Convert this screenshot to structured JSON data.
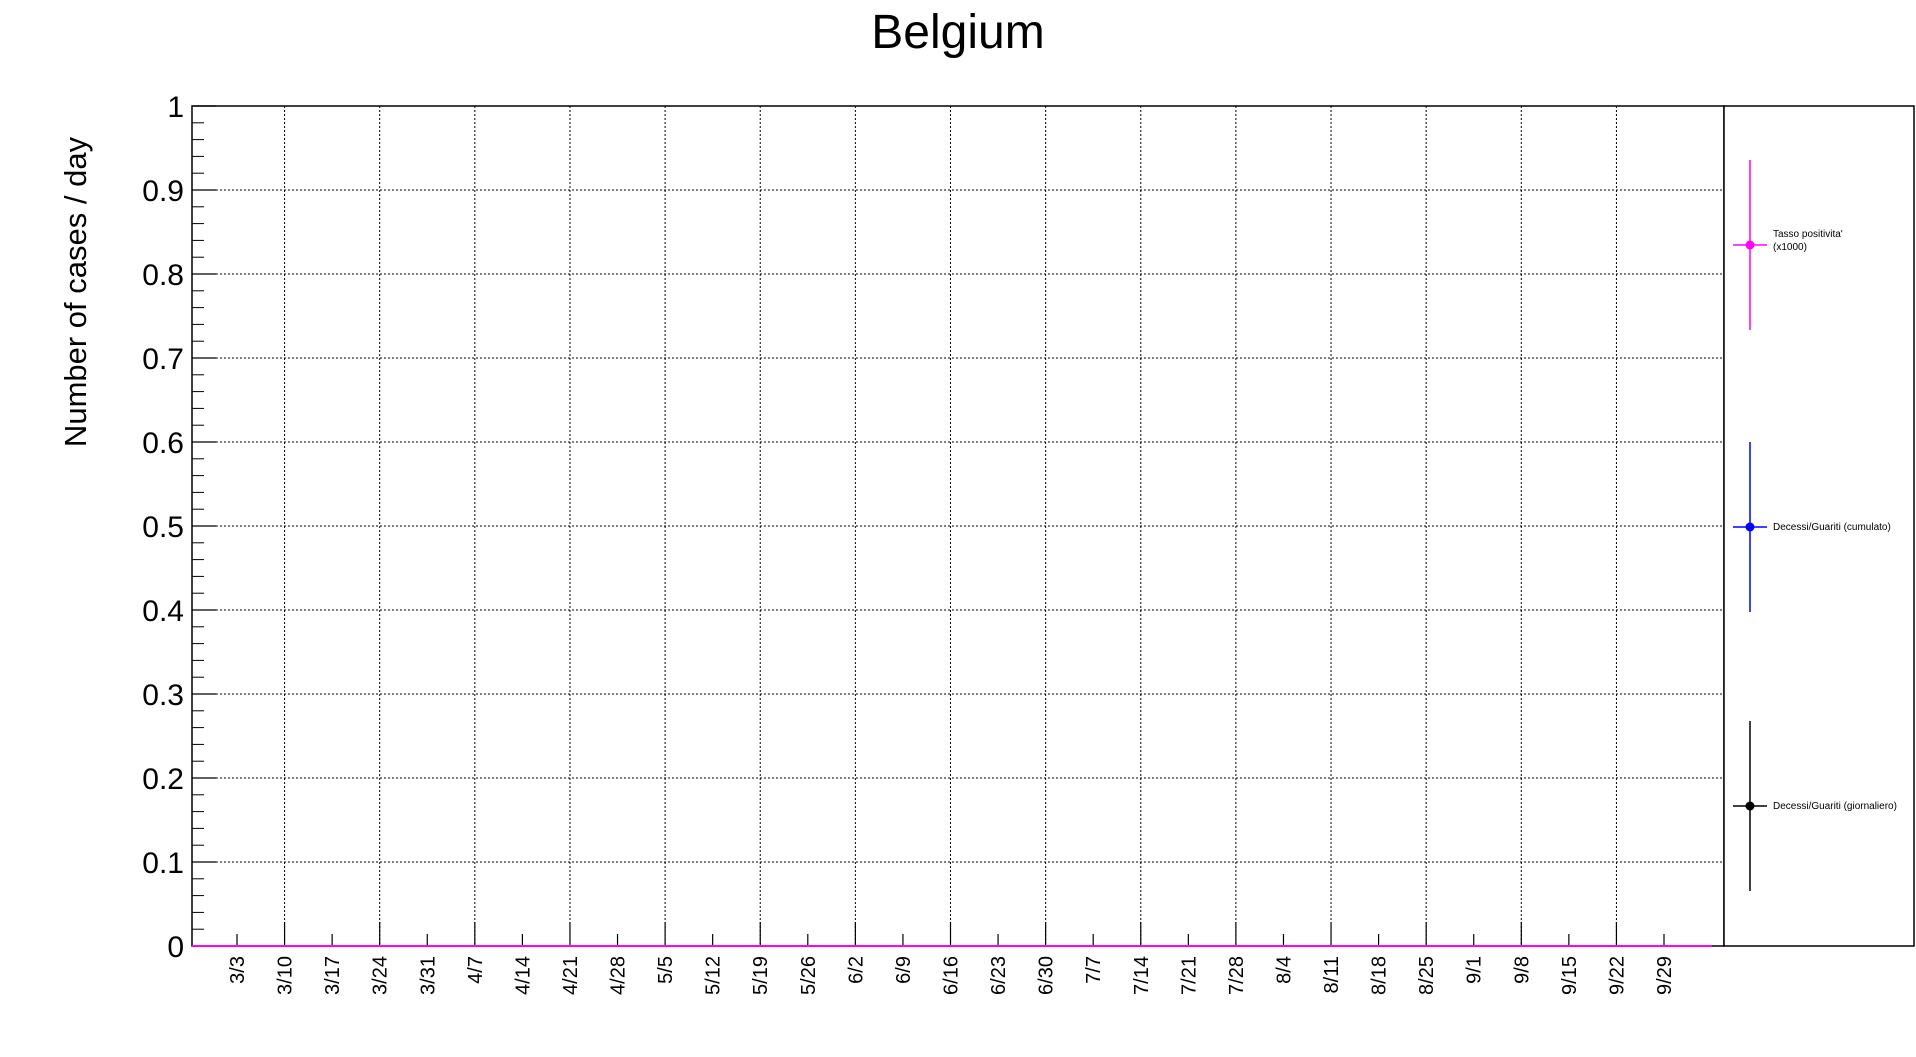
{
  "chart_data": {
    "type": "line",
    "title": "Belgium",
    "ylabel": "Number of cases / day",
    "xlabel": "",
    "ylim": [
      0,
      1
    ],
    "yticks": [
      "0",
      "0.1",
      "0.2",
      "0.3",
      "0.4",
      "0.5",
      "0.6",
      "0.7",
      "0.8",
      "0.9",
      "1"
    ],
    "categories": [
      "3/3",
      "3/10",
      "3/17",
      "3/24",
      "3/31",
      "4/7",
      "4/14",
      "4/21",
      "4/28",
      "5/5",
      "5/12",
      "5/19",
      "5/26",
      "6/2",
      "6/9",
      "6/16",
      "6/23",
      "6/30",
      "7/7",
      "7/14",
      "7/21",
      "7/28",
      "8/4",
      "8/11",
      "8/18",
      "8/25",
      "9/1",
      "9/8",
      "9/15",
      "9/22",
      "9/29"
    ],
    "grid": true,
    "legend_position": "right",
    "series": [
      {
        "name": "Tasso positivita' (x1000)",
        "color": "#ff00ff",
        "values": [
          0,
          0,
          0,
          0,
          0,
          0,
          0,
          0,
          0,
          0,
          0,
          0,
          0,
          0,
          0,
          0,
          0,
          0,
          0,
          0,
          0,
          0,
          0,
          0,
          0,
          0,
          0,
          0,
          0,
          0,
          0
        ]
      },
      {
        "name": "Decessi/Guariti (cumulato)",
        "color": "#0000ff",
        "values": [
          0,
          0,
          0,
          0,
          0,
          0,
          0,
          0,
          0,
          0,
          0,
          0,
          0,
          0,
          0,
          0,
          0,
          0,
          0,
          0,
          0,
          0,
          0,
          0,
          0,
          0,
          0,
          0,
          0,
          0,
          0
        ]
      },
      {
        "name": "Decessi/Guariti (giornaliero)",
        "color": "#000000",
        "values": [
          0,
          0,
          0,
          0,
          0,
          0,
          0,
          0,
          0,
          0,
          0,
          0,
          0,
          0,
          0,
          0,
          0,
          0,
          0,
          0,
          0,
          0,
          0,
          0,
          0,
          0,
          0,
          0,
          0,
          0,
          0
        ]
      }
    ]
  }
}
